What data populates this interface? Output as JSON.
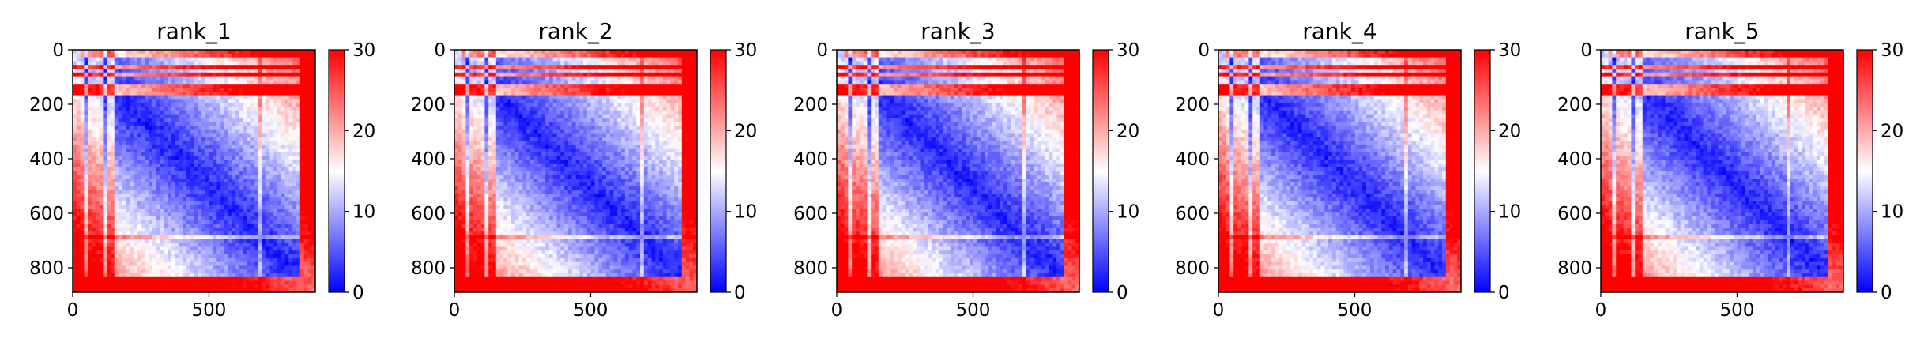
{
  "chart_data": [
    {
      "type": "heatmap",
      "title": "rank_1",
      "xlabel": "",
      "ylabel": "",
      "x_range": [
        0,
        890
      ],
      "y_range": [
        0,
        890
      ],
      "y_inverted": true,
      "x_ticks": [
        "0",
        "500"
      ],
      "y_ticks": [
        "0",
        "200",
        "400",
        "600",
        "800"
      ],
      "colorbar": {
        "range": [
          0,
          30
        ],
        "ticks": [
          "0",
          "10",
          "20",
          "30"
        ],
        "colormap": "bwr"
      },
      "pattern": {
        "band_rows": [
          60,
          95,
          130,
          148,
          160
        ],
        "band_cols": [
          30,
          60,
          85,
          100,
          140
        ],
        "edge_start": 840,
        "secondary_diagonal_at": 690
      }
    },
    {
      "type": "heatmap",
      "title": "rank_2",
      "xlabel": "",
      "ylabel": "",
      "x_range": [
        0,
        890
      ],
      "y_range": [
        0,
        890
      ],
      "y_inverted": true,
      "x_ticks": [
        "0",
        "500"
      ],
      "y_ticks": [
        "0",
        "200",
        "400",
        "600",
        "800"
      ],
      "colorbar": {
        "range": [
          0,
          30
        ],
        "ticks": [
          "0",
          "10",
          "20",
          "30"
        ],
        "colormap": "bwr"
      },
      "pattern": {
        "band_rows": [
          60,
          95,
          130,
          148,
          160
        ],
        "band_cols": [
          30,
          60,
          85,
          100,
          140
        ],
        "edge_start": 840,
        "secondary_diagonal_at": 690
      }
    },
    {
      "type": "heatmap",
      "title": "rank_3",
      "xlabel": "",
      "ylabel": "",
      "x_range": [
        0,
        890
      ],
      "y_range": [
        0,
        890
      ],
      "y_inverted": true,
      "x_ticks": [
        "0",
        "500"
      ],
      "y_ticks": [
        "0",
        "200",
        "400",
        "600",
        "800"
      ],
      "colorbar": {
        "range": [
          0,
          30
        ],
        "ticks": [
          "0",
          "10",
          "20",
          "30"
        ],
        "colormap": "bwr"
      },
      "pattern": {
        "band_rows": [
          60,
          95,
          130,
          148,
          160
        ],
        "band_cols": [
          30,
          60,
          85,
          100,
          140
        ],
        "edge_start": 840,
        "secondary_diagonal_at": 690
      }
    },
    {
      "type": "heatmap",
      "title": "rank_4",
      "xlabel": "",
      "ylabel": "",
      "x_range": [
        0,
        890
      ],
      "y_range": [
        0,
        890
      ],
      "y_inverted": true,
      "x_ticks": [
        "0",
        "500"
      ],
      "y_ticks": [
        "0",
        "200",
        "400",
        "600",
        "800"
      ],
      "colorbar": {
        "range": [
          0,
          30
        ],
        "ticks": [
          "0",
          "10",
          "20",
          "30"
        ],
        "colormap": "bwr"
      },
      "pattern": {
        "band_rows": [
          60,
          95,
          130,
          148,
          160
        ],
        "band_cols": [
          30,
          60,
          85,
          100,
          140
        ],
        "edge_start": 840,
        "secondary_diagonal_at": 690
      }
    },
    {
      "type": "heatmap",
      "title": "rank_5",
      "xlabel": "",
      "ylabel": "",
      "x_range": [
        0,
        890
      ],
      "y_range": [
        0,
        890
      ],
      "y_inverted": true,
      "x_ticks": [
        "0",
        "500"
      ],
      "y_ticks": [
        "0",
        "200",
        "400",
        "600",
        "800"
      ],
      "colorbar": {
        "range": [
          0,
          30
        ],
        "ticks": [
          "0",
          "10",
          "20",
          "30"
        ],
        "colormap": "bwr"
      },
      "pattern": {
        "band_rows": [
          60,
          95,
          130,
          148,
          160
        ],
        "band_cols": [
          30,
          60,
          85,
          100,
          140
        ],
        "edge_start": 840,
        "secondary_diagonal_at": 690
      }
    }
  ],
  "colors": {
    "low": "#0000ff",
    "mid": "#ffffff",
    "high": "#ff0000"
  }
}
